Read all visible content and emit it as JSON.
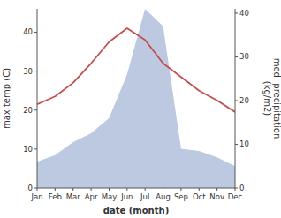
{
  "chart_data": {
    "type": "line",
    "categories": [
      "Jan",
      "Feb",
      "Mar",
      "Apr",
      "May",
      "Jun",
      "Jul",
      "Aug",
      "Sep",
      "Oct",
      "Nov",
      "Dec"
    ],
    "xlabel": "date (month)",
    "ylabel": "max temp (C)",
    "y2label": "med. precipitation\n(kg/m2)",
    "ylim": [
      0,
      46
    ],
    "yticks": [
      0,
      10,
      20,
      30,
      40
    ],
    "y2lim": [
      0,
      41
    ],
    "y2ticks": [
      0,
      10,
      20,
      30,
      40
    ],
    "grid": false,
    "series": [
      {
        "type": "area",
        "axis": "y2",
        "color": "#bcc9e0",
        "values": [
          6.0,
          7.5,
          10.5,
          12.5,
          16.0,
          26.0,
          41.0,
          37.0,
          9.0,
          8.5,
          7.0,
          5.0
        ]
      },
      {
        "type": "line",
        "color": "#c0504d",
        "values": [
          21.5,
          23.5,
          27.0,
          32.0,
          37.5,
          41.0,
          38.0,
          32.0,
          28.5,
          25.0,
          22.5,
          19.5
        ]
      }
    ]
  }
}
